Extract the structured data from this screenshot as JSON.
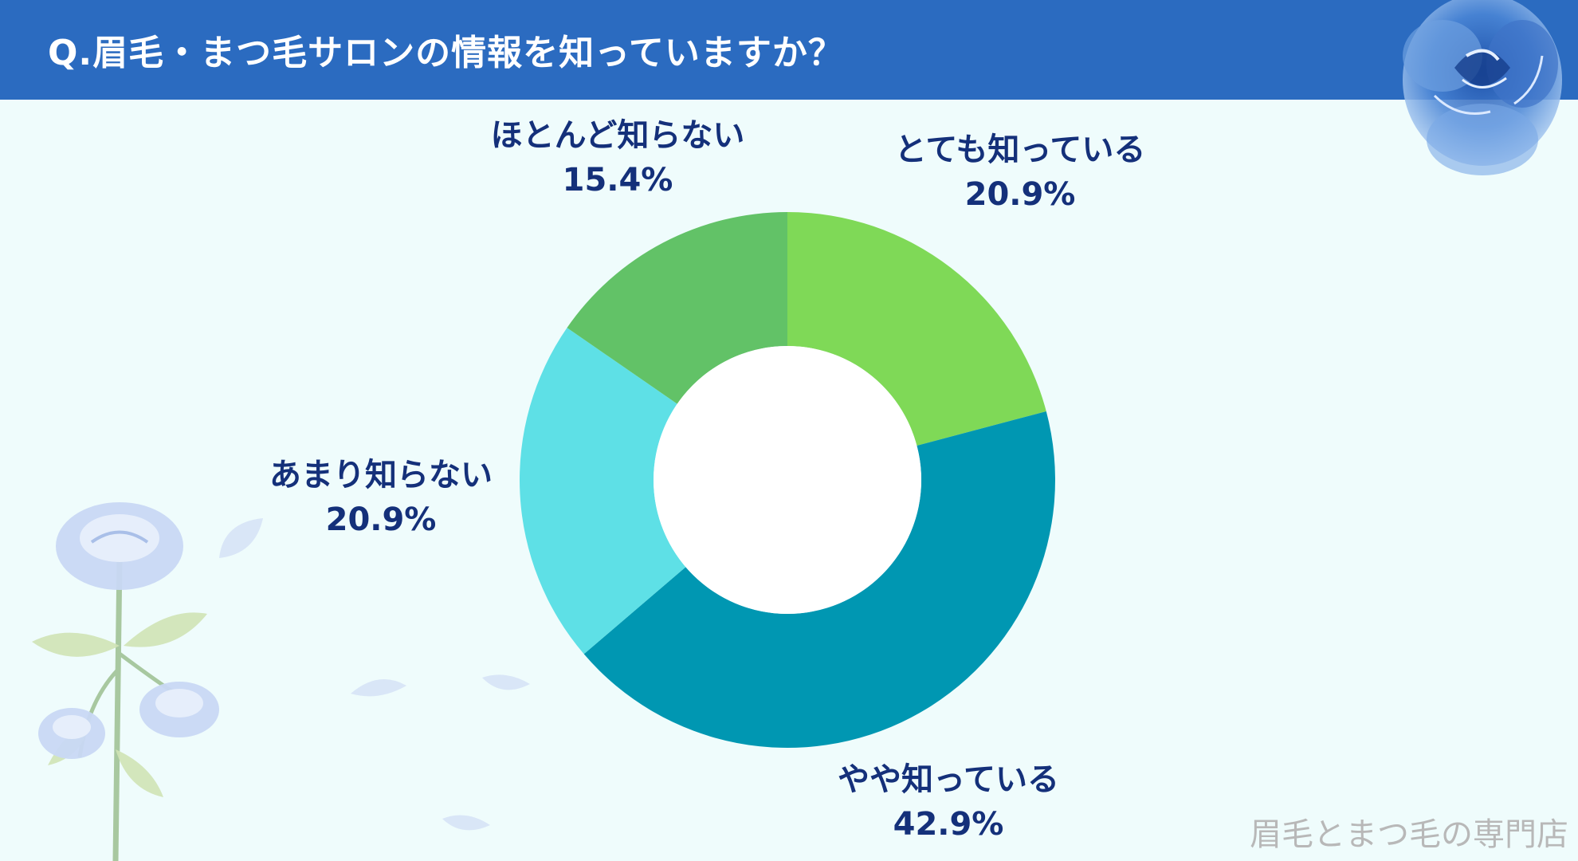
{
  "title": "Q.眉毛・まつ毛サロンの情報を知っていますか？",
  "watermark": "眉毛とまつ毛の専門店",
  "colors": {
    "header": "#2b6bc0",
    "background": "#effcfc",
    "label_text": "#14307a"
  },
  "chart_data": {
    "type": "pie",
    "donut": true,
    "start": "top",
    "direction": "clockwise",
    "slices": [
      {
        "label": "とても知っている",
        "value": 20.9,
        "value_label": "20.9%",
        "color": "#7fd957"
      },
      {
        "label": "やや知っている",
        "value": 42.9,
        "value_label": "42.9%",
        "color": "#0097b2"
      },
      {
        "label": "あまり知らない",
        "value": 20.9,
        "value_label": "20.9%",
        "color": "#5ee0e6"
      },
      {
        "label": "ほとんど知らない",
        "value": 15.4,
        "value_label": "15.4%",
        "color": "#62c267"
      }
    ]
  }
}
